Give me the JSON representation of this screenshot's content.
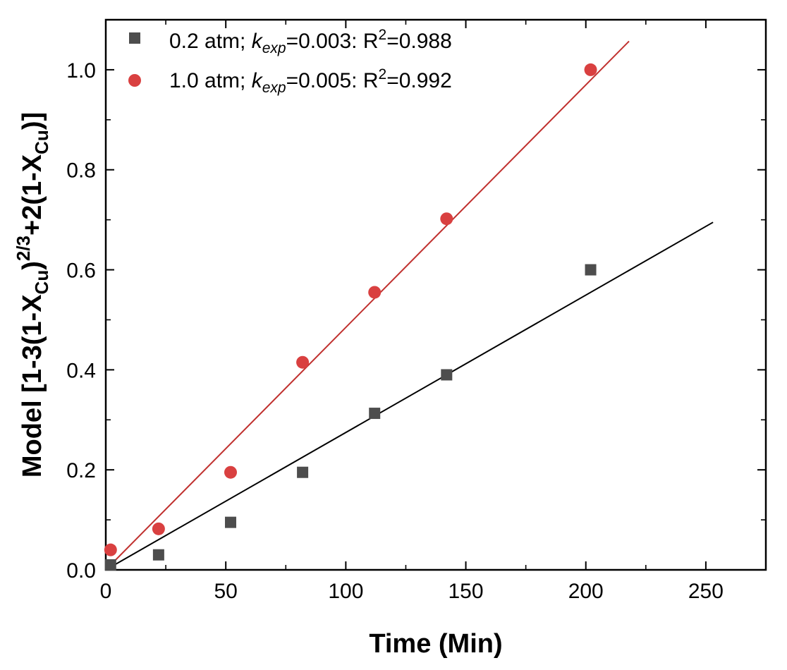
{
  "chart_data": {
    "type": "scatter",
    "xlabel": "Time (Min)",
    "ylabel": {
      "prefix": "Model [1-3(1-X",
      "sub1": "Cu",
      "mid": ")",
      "sup": "2/3",
      "mid2": "+2(1-X",
      "sub2": "Cu",
      "suffix": ")]"
    },
    "xlim": [
      0,
      275
    ],
    "ylim": [
      0,
      1.1
    ],
    "x_ticks": [
      0,
      50,
      100,
      150,
      200,
      250
    ],
    "x_tick_labels": [
      "0",
      "50",
      "100",
      "150",
      "200",
      "250"
    ],
    "y_ticks": [
      0.0,
      0.2,
      0.4,
      0.6,
      0.8,
      1.0
    ],
    "y_tick_labels": [
      "0.0",
      "0.2",
      "0.4",
      "0.6",
      "0.8",
      "1.0"
    ],
    "grid": false,
    "legend_position": "top-left",
    "series": [
      {
        "name": "0.2 atm",
        "marker": "square",
        "color": "#4d4d4d",
        "line_color": "#000000",
        "legend": {
          "prefix": "0.2 atm; ",
          "k": "k",
          "k_sub": "exp",
          "k_value": "=0.003: R",
          "r_sup": "2",
          "r_value": "=0.988"
        },
        "x": [
          2,
          22,
          52,
          82,
          112,
          142,
          202
        ],
        "y": [
          0.01,
          0.03,
          0.095,
          0.195,
          0.313,
          0.39,
          0.6
        ],
        "fit": {
          "x": [
            0,
            253
          ],
          "y": [
            0.0,
            0.695
          ]
        }
      },
      {
        "name": "1.0 atm",
        "marker": "circle",
        "color": "#d94040",
        "line_color": "#c0302e",
        "legend": {
          "prefix": "1.0 atm; ",
          "k": "k",
          "k_sub": "exp",
          "k_value": "=0.005: R",
          "r_sup": "2",
          "r_value": "=0.992"
        },
        "x": [
          2,
          22,
          52,
          82,
          112,
          142,
          202
        ],
        "y": [
          0.04,
          0.082,
          0.195,
          0.415,
          0.555,
          0.702,
          1.0
        ],
        "fit": {
          "x": [
            0,
            218
          ],
          "y": [
            0.0,
            1.057
          ]
        }
      }
    ]
  }
}
